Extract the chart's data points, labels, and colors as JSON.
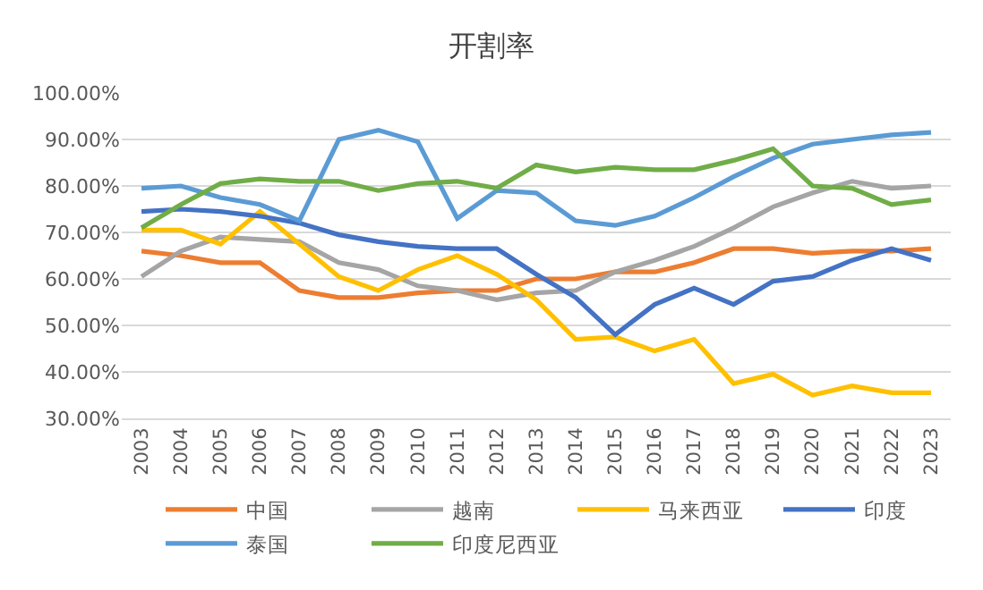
{
  "chart_data": {
    "type": "line",
    "title": "开割率",
    "categories": [
      "2003",
      "2004",
      "2005",
      "2006",
      "2007",
      "2008",
      "2009",
      "2010",
      "2011",
      "2012",
      "2013",
      "2014",
      "2015",
      "2016",
      "2017",
      "2018",
      "2019",
      "2020",
      "2021",
      "2022",
      "2023"
    ],
    "series": [
      {
        "name": "中国",
        "color": "#ed7d31",
        "values": [
          66,
          65,
          63.5,
          63.5,
          57.5,
          56,
          56,
          57,
          57.5,
          57.5,
          60,
          60,
          61.5,
          61.5,
          63.5,
          66.5,
          66.5,
          65.5,
          66,
          66,
          66.5
        ]
      },
      {
        "name": "越南",
        "color": "#a5a5a5",
        "values": [
          60.5,
          66,
          69,
          68.5,
          68,
          63.5,
          62,
          58.5,
          57.5,
          55.5,
          57,
          57.5,
          61.5,
          64,
          67,
          71,
          75.5,
          78.5,
          81,
          79.5,
          80
        ]
      },
      {
        "name": "马来西亚",
        "color": "#ffc000",
        "values": [
          70.5,
          70.5,
          67.5,
          74.5,
          67.5,
          60.5,
          57.5,
          62,
          65,
          61,
          55.5,
          47,
          47.5,
          44.5,
          47,
          37.5,
          39.5,
          35,
          37,
          35.5,
          35.5
        ]
      },
      {
        "name": "印度",
        "color": "#4472c4",
        "values": [
          74.5,
          75,
          74.5,
          73.5,
          72,
          69.5,
          68,
          67,
          66.5,
          66.5,
          61,
          56,
          48,
          54.5,
          58,
          54.5,
          59.5,
          60.5,
          64,
          66.5,
          64
        ]
      },
      {
        "name": "泰国",
        "color": "#5b9bd5",
        "values": [
          79.5,
          80,
          77.5,
          76,
          72.5,
          90,
          92,
          89.5,
          73,
          79,
          78.5,
          72.5,
          71.5,
          73.5,
          77.5,
          82,
          86,
          89,
          90,
          91,
          91.5
        ]
      },
      {
        "name": "印度尼西亚",
        "color": "#70ad47",
        "values": [
          71,
          76,
          80.5,
          81.5,
          81,
          81,
          79,
          80.5,
          81,
          79.5,
          84.5,
          83,
          84,
          83.5,
          83.5,
          85.5,
          88,
          80,
          79.5,
          76,
          77
        ]
      }
    ],
    "ylim": [
      30,
      100
    ],
    "yticks": [
      {
        "value": 30,
        "label": "30.00%"
      },
      {
        "value": 40,
        "label": "40.00%"
      },
      {
        "value": 50,
        "label": "50.00%"
      },
      {
        "value": 60,
        "label": "60.00%"
      },
      {
        "value": 70,
        "label": "70.00%"
      },
      {
        "value": 80,
        "label": "80.00%"
      },
      {
        "value": 90,
        "label": "90.00%"
      },
      {
        "value": 100,
        "label": "100.00%"
      }
    ],
    "grid": "y",
    "legend": "bottom",
    "marker": "none",
    "line_style": "solid"
  }
}
